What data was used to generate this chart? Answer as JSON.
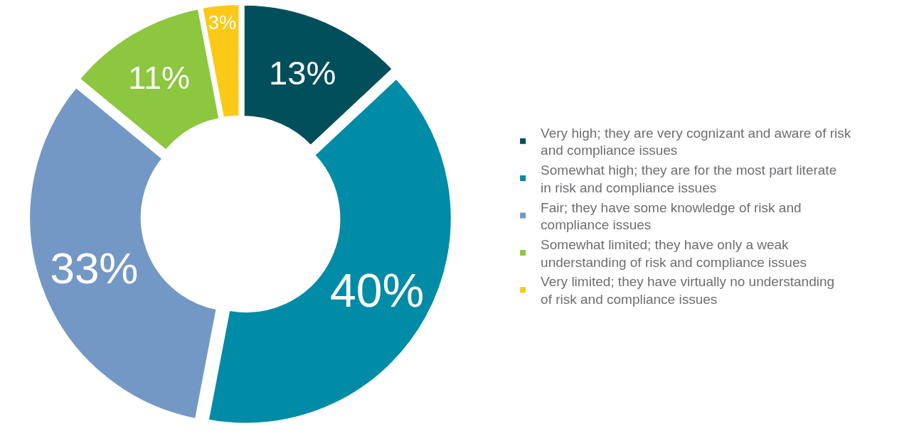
{
  "chart_data": {
    "type": "donut",
    "categories": [
      "Very high; they are very cognizant and aware of risk and compliance issues",
      "Somewhat high; they are for the most part literate in risk and compliance issues",
      "Fair; they have some knowledge of risk and compliance issues",
      "Somewhat limited; they have only a weak understanding of risk and compliance issues",
      "Very limited; they have virtually no understanding of risk and compliance issues"
    ],
    "values": [
      13,
      40,
      33,
      11,
      3
    ],
    "value_labels": [
      "13%",
      "40%",
      "33%",
      "11%",
      "3%"
    ],
    "colors": [
      "#004f5a",
      "#008ba7",
      "#7398c6",
      "#8dc63f",
      "#fcc918"
    ],
    "legend": "right"
  }
}
